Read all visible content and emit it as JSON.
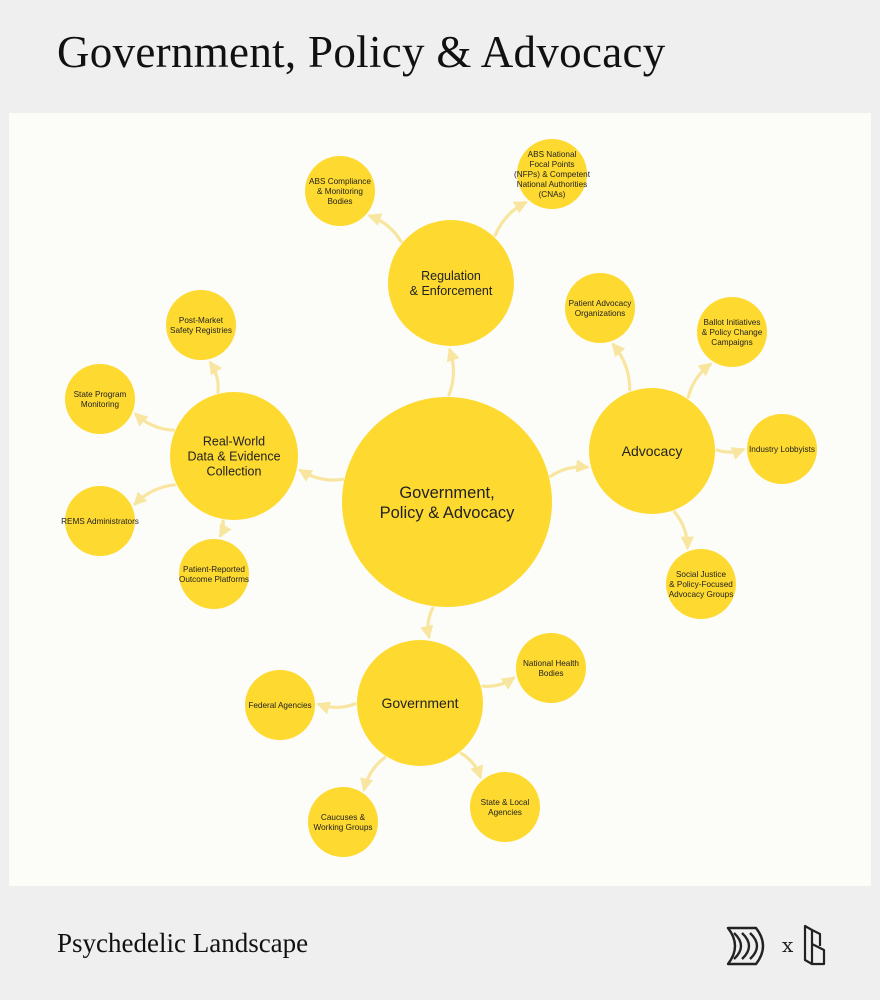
{
  "header": {
    "title": "Government, Policy & Advocacy"
  },
  "footer": {
    "brand_text": "Psychedelic Landscape",
    "separator": "x"
  },
  "logos": {
    "left": "leaf-chevron-logo",
    "right": "stacked-b-logo"
  },
  "colors": {
    "background": "#efefef",
    "panel": "#fcfcf9",
    "node": "#fed930",
    "connector": "#f8e6a0",
    "text": "#222222"
  },
  "nodes": [
    {
      "id": "center",
      "lines": [
        "Government,",
        "Policy & Advocacy"
      ]
    },
    {
      "id": "regulation",
      "lines": [
        "Regulation",
        "& Enforcement"
      ]
    },
    {
      "id": "advocacy",
      "lines": [
        "Advocacy"
      ]
    },
    {
      "id": "government",
      "lines": [
        "Government"
      ]
    },
    {
      "id": "rwd",
      "lines": [
        "Real-World",
        "Data & Evidence",
        "Collection"
      ]
    },
    {
      "id": "abs-compliance",
      "lines": [
        "ABS Compliance",
        "& Monitoring",
        "Bodies"
      ]
    },
    {
      "id": "abs-nfp",
      "lines": [
        "ABS National",
        "Focal Points",
        "(NFPs) & Competent",
        "National Authorities",
        "(CNAs)"
      ]
    },
    {
      "id": "patient-advocacy",
      "lines": [
        "Patient Advocacy",
        "Organizations"
      ]
    },
    {
      "id": "ballot",
      "lines": [
        "Ballot Initiatives",
        "& Policy Change",
        "Campaigns"
      ]
    },
    {
      "id": "lobbyists",
      "lines": [
        "Industry Lobbyists"
      ]
    },
    {
      "id": "social-justice",
      "lines": [
        "Social Justice",
        "& Policy-Focused",
        "Advocacy Groups"
      ]
    },
    {
      "id": "national-health",
      "lines": [
        "National Health",
        "Bodies"
      ]
    },
    {
      "id": "federal",
      "lines": [
        "Federal Agencies"
      ]
    },
    {
      "id": "caucuses",
      "lines": [
        "Caucuses &",
        "Working Groups"
      ]
    },
    {
      "id": "state-local",
      "lines": [
        "State & Local",
        "Agencies"
      ]
    },
    {
      "id": "post-market",
      "lines": [
        "Post-Market",
        "Safety Registries"
      ]
    },
    {
      "id": "state-program",
      "lines": [
        "State Program",
        "Monitoring"
      ]
    },
    {
      "id": "rems",
      "lines": [
        "REMS Administrators"
      ]
    },
    {
      "id": "pro-platforms",
      "lines": [
        "Patient-Reported",
        "Outcome Platforms"
      ]
    }
  ],
  "edges": [
    [
      "center",
      "regulation"
    ],
    [
      "center",
      "advocacy"
    ],
    [
      "center",
      "government"
    ],
    [
      "center",
      "rwd"
    ],
    [
      "regulation",
      "abs-compliance"
    ],
    [
      "regulation",
      "abs-nfp"
    ],
    [
      "advocacy",
      "patient-advocacy"
    ],
    [
      "advocacy",
      "ballot"
    ],
    [
      "advocacy",
      "lobbyists"
    ],
    [
      "advocacy",
      "social-justice"
    ],
    [
      "government",
      "national-health"
    ],
    [
      "government",
      "federal"
    ],
    [
      "government",
      "caucuses"
    ],
    [
      "government",
      "state-local"
    ],
    [
      "rwd",
      "post-market"
    ],
    [
      "rwd",
      "state-program"
    ],
    [
      "rwd",
      "rems"
    ],
    [
      "rwd",
      "pro-platforms"
    ]
  ]
}
